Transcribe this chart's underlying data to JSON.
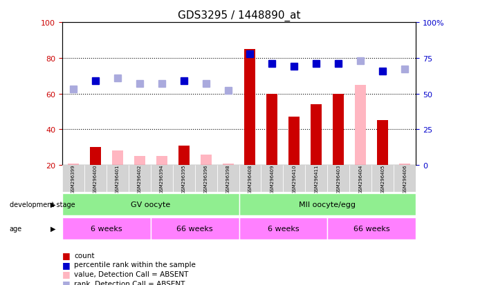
{
  "title": "GDS3295 / 1448890_at",
  "samples": [
    "GSM296399",
    "GSM296400",
    "GSM296401",
    "GSM296402",
    "GSM296394",
    "GSM296395",
    "GSM296396",
    "GSM296398",
    "GSM296408",
    "GSM296409",
    "GSM296410",
    "GSM296411",
    "GSM296403",
    "GSM296404",
    "GSM296405",
    "GSM296406"
  ],
  "count_present": [
    null,
    30,
    null,
    null,
    null,
    31,
    null,
    null,
    85,
    60,
    47,
    54,
    60,
    null,
    45,
    null
  ],
  "count_absent": [
    21,
    null,
    28,
    25,
    25,
    null,
    26,
    21,
    null,
    null,
    null,
    null,
    null,
    65,
    null,
    21
  ],
  "percentile_present": [
    null,
    59,
    null,
    null,
    null,
    59,
    null,
    null,
    78,
    71,
    69,
    71,
    71,
    null,
    66,
    null
  ],
  "percentile_absent": [
    53,
    null,
    61,
    57,
    57,
    null,
    57,
    52,
    null,
    null,
    null,
    null,
    null,
    73,
    null,
    67
  ],
  "ylim_left": [
    20,
    100
  ],
  "ylim_right": [
    0,
    100
  ],
  "yticks_left": [
    20,
    40,
    60,
    80,
    100
  ],
  "yticks_right": [
    0,
    25,
    50,
    75,
    100
  ],
  "bar_width": 0.5,
  "count_present_color": "#CC0000",
  "count_absent_color": "#FFB6C1",
  "percentile_present_color": "#0000CC",
  "percentile_absent_color": "#AAAADD",
  "background_plot": "#FFFFFF",
  "background_sample": "#D3D3D3",
  "grid_color": "#000000",
  "title_color": "#000000",
  "left_axis_color": "#CC0000",
  "right_axis_color": "#0000CC",
  "dev_stage_groups": [
    {
      "label": "GV oocyte",
      "start": 0,
      "end": 7,
      "color": "#90EE90"
    },
    {
      "label": "MII oocyte/egg",
      "start": 8,
      "end": 15,
      "color": "#90EE90"
    }
  ],
  "age_groups": [
    {
      "label": "6 weeks",
      "start": 0,
      "end": 3,
      "color": "#FF80FF"
    },
    {
      "label": "66 weeks",
      "start": 4,
      "end": 7,
      "color": "#FF80FF"
    },
    {
      "label": "6 weeks",
      "start": 8,
      "end": 11,
      "color": "#FF80FF"
    },
    {
      "label": "66 weeks",
      "start": 12,
      "end": 15,
      "color": "#FF80FF"
    }
  ],
  "legend_items": [
    {
      "label": "count",
      "color": "#CC0000"
    },
    {
      "label": "percentile rank within the sample",
      "color": "#0000CC"
    },
    {
      "label": "value, Detection Call = ABSENT",
      "color": "#FFB6C1"
    },
    {
      "label": "rank, Detection Call = ABSENT",
      "color": "#AAAADD"
    }
  ]
}
